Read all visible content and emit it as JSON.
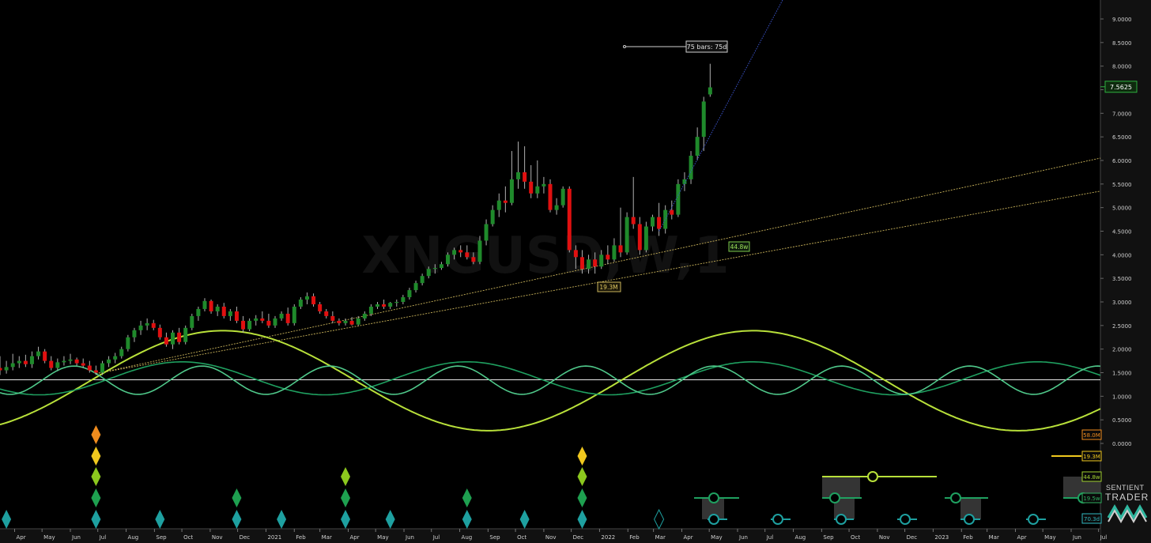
{
  "chart_data": {
    "type": "candlestick",
    "watermark": "XNGUSD,W,1",
    "y_axis": {
      "ticks": [
        "9.0000",
        "8.5000",
        "8.0000",
        "7.5000",
        "7.0000",
        "6.5000",
        "6.0000",
        "5.5000",
        "5.0000",
        "4.5000",
        "4.0000",
        "3.5000",
        "3.0000",
        "2.5000",
        "2.0000",
        "1.5000",
        "1.0000",
        "0.5000",
        "0.0000"
      ],
      "range": [
        0,
        9
      ]
    },
    "x_axis": {
      "ticks": [
        "Apr",
        "May",
        "Jun",
        "Jul",
        "Aug",
        "Sep",
        "Oct",
        "Nov",
        "Dec",
        "2021",
        "Feb",
        "Mar",
        "Apr",
        "May",
        "Jun",
        "Jul",
        "Aug",
        "Sep",
        "Oct",
        "Nov",
        "Dec",
        "2022",
        "Feb",
        "Mar",
        "Apr",
        "May",
        "Jun",
        "Jul",
        "Aug",
        "Sep",
        "Oct",
        "Nov",
        "Dec",
        "2023",
        "Feb",
        "Mar",
        "Apr",
        "May",
        "Jun",
        "Jul"
      ],
      "range": [
        "2020-03-16",
        "2023-07-03"
      ]
    },
    "last_price": "7.5625",
    "annotations": {
      "bars_label": "75 bars: 75d",
      "trend_label_upper": "44.8w",
      "trend_label_lower": "19.3M"
    },
    "cycle_labels": [
      "58.0M",
      "19.3M",
      "44.8w",
      "19.5w",
      "70.3d"
    ],
    "colors": {
      "up": "#1f8a2b",
      "down": "#e01010",
      "wave_long": "#b8e03a",
      "wave_mid": "#1fa060",
      "wave_short": "#4fc88a",
      "trend": "#c9b35a",
      "projection": "#3a52c8",
      "diamond_orange": "#f08c1e",
      "diamond_yellow": "#f0c81e",
      "diamond_lime": "#8cc81e",
      "diamond_green": "#1ea050",
      "diamond_teal": "#1ea0a0",
      "label_58": "#f08c1e",
      "label_19": "#f0c81e",
      "label_44": "#a0d030",
      "label_19_5": "#30b060",
      "label_70": "#30b8c0"
    },
    "candles": [
      {
        "d": "2020-03-16",
        "o": 1.6,
        "h": 1.85,
        "l": 1.45,
        "c": 1.55
      },
      {
        "d": "2020-03-23",
        "o": 1.55,
        "h": 1.75,
        "l": 1.48,
        "c": 1.62
      },
      {
        "d": "2020-03-30",
        "o": 1.62,
        "h": 1.9,
        "l": 1.55,
        "c": 1.7
      },
      {
        "d": "2020-04-06",
        "o": 1.7,
        "h": 1.85,
        "l": 1.6,
        "c": 1.75
      },
      {
        "d": "2020-04-13",
        "o": 1.75,
        "h": 1.88,
        "l": 1.62,
        "c": 1.68
      },
      {
        "d": "2020-04-20",
        "o": 1.68,
        "h": 1.95,
        "l": 1.6,
        "c": 1.85
      },
      {
        "d": "2020-04-27",
        "o": 1.85,
        "h": 2.05,
        "l": 1.78,
        "c": 1.95
      },
      {
        "d": "2020-05-04",
        "o": 1.95,
        "h": 2.0,
        "l": 1.7,
        "c": 1.75
      },
      {
        "d": "2020-05-11",
        "o": 1.75,
        "h": 1.85,
        "l": 1.55,
        "c": 1.6
      },
      {
        "d": "2020-05-18",
        "o": 1.6,
        "h": 1.8,
        "l": 1.55,
        "c": 1.72
      },
      {
        "d": "2020-05-25",
        "o": 1.72,
        "h": 1.85,
        "l": 1.65,
        "c": 1.75
      },
      {
        "d": "2020-06-01",
        "o": 1.75,
        "h": 1.9,
        "l": 1.68,
        "c": 1.78
      },
      {
        "d": "2020-06-08",
        "o": 1.78,
        "h": 1.82,
        "l": 1.65,
        "c": 1.7
      },
      {
        "d": "2020-06-15",
        "o": 1.7,
        "h": 1.8,
        "l": 1.6,
        "c": 1.65
      },
      {
        "d": "2020-06-22",
        "o": 1.65,
        "h": 1.75,
        "l": 1.5,
        "c": 1.55
      },
      {
        "d": "2020-06-29",
        "o": 1.55,
        "h": 1.65,
        "l": 1.45,
        "c": 1.5
      },
      {
        "d": "2020-07-06",
        "o": 1.5,
        "h": 1.75,
        "l": 1.45,
        "c": 1.7
      },
      {
        "d": "2020-07-13",
        "o": 1.7,
        "h": 1.85,
        "l": 1.62,
        "c": 1.78
      },
      {
        "d": "2020-07-20",
        "o": 1.78,
        "h": 1.92,
        "l": 1.7,
        "c": 1.85
      },
      {
        "d": "2020-07-27",
        "o": 1.85,
        "h": 2.05,
        "l": 1.8,
        "c": 2.0
      },
      {
        "d": "2020-08-03",
        "o": 2.0,
        "h": 2.3,
        "l": 1.95,
        "c": 2.25
      },
      {
        "d": "2020-08-10",
        "o": 2.25,
        "h": 2.45,
        "l": 2.15,
        "c": 2.4
      },
      {
        "d": "2020-08-17",
        "o": 2.4,
        "h": 2.6,
        "l": 2.3,
        "c": 2.5
      },
      {
        "d": "2020-08-24",
        "o": 2.5,
        "h": 2.65,
        "l": 2.4,
        "c": 2.55
      },
      {
        "d": "2020-08-31",
        "o": 2.55,
        "h": 2.62,
        "l": 2.4,
        "c": 2.45
      },
      {
        "d": "2020-09-07",
        "o": 2.45,
        "h": 2.52,
        "l": 2.2,
        "c": 2.25
      },
      {
        "d": "2020-09-14",
        "o": 2.25,
        "h": 2.35,
        "l": 2.05,
        "c": 2.1
      },
      {
        "d": "2020-09-21",
        "o": 2.1,
        "h": 2.4,
        "l": 2.0,
        "c": 2.35
      },
      {
        "d": "2020-09-28",
        "o": 2.35,
        "h": 2.45,
        "l": 2.1,
        "c": 2.15
      },
      {
        "d": "2020-10-05",
        "o": 2.15,
        "h": 2.5,
        "l": 2.1,
        "c": 2.45
      },
      {
        "d": "2020-10-12",
        "o": 2.45,
        "h": 2.75,
        "l": 2.4,
        "c": 2.7
      },
      {
        "d": "2020-10-19",
        "o": 2.7,
        "h": 2.9,
        "l": 2.6,
        "c": 2.85
      },
      {
        "d": "2020-10-26",
        "o": 2.85,
        "h": 3.08,
        "l": 2.8,
        "c": 3.02
      },
      {
        "d": "2020-11-02",
        "o": 3.02,
        "h": 3.05,
        "l": 2.75,
        "c": 2.8
      },
      {
        "d": "2020-11-09",
        "o": 2.8,
        "h": 2.95,
        "l": 2.7,
        "c": 2.9
      },
      {
        "d": "2020-11-16",
        "o": 2.9,
        "h": 2.98,
        "l": 2.65,
        "c": 2.7
      },
      {
        "d": "2020-11-23",
        "o": 2.7,
        "h": 2.85,
        "l": 2.6,
        "c": 2.8
      },
      {
        "d": "2020-11-30",
        "o": 2.8,
        "h": 2.9,
        "l": 2.55,
        "c": 2.6
      },
      {
        "d": "2020-12-07",
        "o": 2.6,
        "h": 2.7,
        "l": 2.35,
        "c": 2.42
      },
      {
        "d": "2020-12-14",
        "o": 2.42,
        "h": 2.65,
        "l": 2.38,
        "c": 2.6
      },
      {
        "d": "2020-12-21",
        "o": 2.6,
        "h": 2.72,
        "l": 2.5,
        "c": 2.65
      },
      {
        "d": "2020-12-28",
        "o": 2.65,
        "h": 2.8,
        "l": 2.55,
        "c": 2.6
      },
      {
        "d": "2021-01-04",
        "o": 2.6,
        "h": 2.75,
        "l": 2.45,
        "c": 2.5
      },
      {
        "d": "2021-01-11",
        "o": 2.5,
        "h": 2.7,
        "l": 2.45,
        "c": 2.65
      },
      {
        "d": "2021-01-18",
        "o": 2.65,
        "h": 2.8,
        "l": 2.6,
        "c": 2.75
      },
      {
        "d": "2021-01-25",
        "o": 2.75,
        "h": 2.88,
        "l": 2.5,
        "c": 2.55
      },
      {
        "d": "2021-02-01",
        "o": 2.55,
        "h": 2.95,
        "l": 2.5,
        "c": 2.9
      },
      {
        "d": "2021-02-08",
        "o": 2.9,
        "h": 3.1,
        "l": 2.85,
        "c": 3.05
      },
      {
        "d": "2021-02-15",
        "o": 3.05,
        "h": 3.2,
        "l": 2.95,
        "c": 3.12
      },
      {
        "d": "2021-02-22",
        "o": 3.12,
        "h": 3.18,
        "l": 2.9,
        "c": 2.95
      },
      {
        "d": "2021-03-01",
        "o": 2.95,
        "h": 3.0,
        "l": 2.75,
        "c": 2.8
      },
      {
        "d": "2021-03-08",
        "o": 2.8,
        "h": 2.85,
        "l": 2.65,
        "c": 2.7
      },
      {
        "d": "2021-03-15",
        "o": 2.7,
        "h": 2.8,
        "l": 2.55,
        "c": 2.6
      },
      {
        "d": "2021-03-22",
        "o": 2.6,
        "h": 2.65,
        "l": 2.5,
        "c": 2.55
      },
      {
        "d": "2021-03-29",
        "o": 2.55,
        "h": 2.65,
        "l": 2.5,
        "c": 2.6
      },
      {
        "d": "2021-04-05",
        "o": 2.6,
        "h": 2.68,
        "l": 2.5,
        "c": 2.52
      },
      {
        "d": "2021-04-12",
        "o": 2.52,
        "h": 2.7,
        "l": 2.5,
        "c": 2.65
      },
      {
        "d": "2021-04-19",
        "o": 2.65,
        "h": 2.8,
        "l": 2.6,
        "c": 2.75
      },
      {
        "d": "2021-04-26",
        "o": 2.75,
        "h": 2.95,
        "l": 2.7,
        "c": 2.9
      },
      {
        "d": "2021-05-03",
        "o": 2.9,
        "h": 3.0,
        "l": 2.85,
        "c": 2.95
      },
      {
        "d": "2021-05-10",
        "o": 2.95,
        "h": 3.05,
        "l": 2.85,
        "c": 2.9
      },
      {
        "d": "2021-05-17",
        "o": 2.9,
        "h": 3.0,
        "l": 2.85,
        "c": 2.98
      },
      {
        "d": "2021-05-24",
        "o": 2.98,
        "h": 3.05,
        "l": 2.9,
        "c": 3.0
      },
      {
        "d": "2021-05-31",
        "o": 3.0,
        "h": 3.15,
        "l": 2.95,
        "c": 3.1
      },
      {
        "d": "2021-06-07",
        "o": 3.1,
        "h": 3.3,
        "l": 3.05,
        "c": 3.25
      },
      {
        "d": "2021-06-14",
        "o": 3.25,
        "h": 3.45,
        "l": 3.2,
        "c": 3.4
      },
      {
        "d": "2021-06-21",
        "o": 3.4,
        "h": 3.6,
        "l": 3.35,
        "c": 3.55
      },
      {
        "d": "2021-06-28",
        "o": 3.55,
        "h": 3.75,
        "l": 3.5,
        "c": 3.7
      },
      {
        "d": "2021-07-05",
        "o": 3.7,
        "h": 3.8,
        "l": 3.6,
        "c": 3.72
      },
      {
        "d": "2021-07-12",
        "o": 3.72,
        "h": 3.85,
        "l": 3.68,
        "c": 3.8
      },
      {
        "d": "2021-07-19",
        "o": 3.8,
        "h": 4.05,
        "l": 3.75,
        "c": 4.0
      },
      {
        "d": "2021-07-26",
        "o": 4.0,
        "h": 4.15,
        "l": 3.9,
        "c": 4.1
      },
      {
        "d": "2021-08-02",
        "o": 4.1,
        "h": 4.2,
        "l": 3.95,
        "c": 4.05
      },
      {
        "d": "2021-08-09",
        "o": 4.05,
        "h": 4.2,
        "l": 3.9,
        "c": 3.95
      },
      {
        "d": "2021-08-16",
        "o": 3.95,
        "h": 4.05,
        "l": 3.8,
        "c": 3.85
      },
      {
        "d": "2021-08-23",
        "o": 3.85,
        "h": 4.4,
        "l": 3.8,
        "c": 4.3
      },
      {
        "d": "2021-08-30",
        "o": 4.3,
        "h": 4.75,
        "l": 4.2,
        "c": 4.65
      },
      {
        "d": "2021-09-06",
        "o": 4.65,
        "h": 5.05,
        "l": 4.6,
        "c": 4.95
      },
      {
        "d": "2021-09-13",
        "o": 4.95,
        "h": 5.3,
        "l": 4.8,
        "c": 5.15
      },
      {
        "d": "2021-09-20",
        "o": 5.15,
        "h": 5.45,
        "l": 4.9,
        "c": 5.1
      },
      {
        "d": "2021-09-27",
        "o": 5.1,
        "h": 6.2,
        "l": 5.05,
        "c": 5.6
      },
      {
        "d": "2021-10-04",
        "o": 5.6,
        "h": 6.4,
        "l": 5.4,
        "c": 5.75
      },
      {
        "d": "2021-10-11",
        "o": 5.75,
        "h": 6.3,
        "l": 5.4,
        "c": 5.55
      },
      {
        "d": "2021-10-18",
        "o": 5.55,
        "h": 5.9,
        "l": 5.2,
        "c": 5.3
      },
      {
        "d": "2021-10-25",
        "o": 5.3,
        "h": 6.0,
        "l": 5.2,
        "c": 5.45
      },
      {
        "d": "2021-11-01",
        "o": 5.45,
        "h": 5.65,
        "l": 5.3,
        "c": 5.5
      },
      {
        "d": "2021-11-08",
        "o": 5.5,
        "h": 5.6,
        "l": 4.9,
        "c": 4.95
      },
      {
        "d": "2021-11-15",
        "o": 4.95,
        "h": 5.2,
        "l": 4.85,
        "c": 5.05
      },
      {
        "d": "2021-11-22",
        "o": 5.05,
        "h": 5.45,
        "l": 5.0,
        "c": 5.4
      },
      {
        "d": "2021-11-29",
        "o": 5.4,
        "h": 5.45,
        "l": 4.05,
        "c": 4.1
      },
      {
        "d": "2021-12-06",
        "o": 4.1,
        "h": 4.2,
        "l": 3.7,
        "c": 3.95
      },
      {
        "d": "2021-12-13",
        "o": 3.95,
        "h": 4.1,
        "l": 3.6,
        "c": 3.7
      },
      {
        "d": "2021-12-20",
        "o": 3.7,
        "h": 4.0,
        "l": 3.6,
        "c": 3.9
      },
      {
        "d": "2021-12-27",
        "o": 3.9,
        "h": 4.05,
        "l": 3.6,
        "c": 3.75
      },
      {
        "d": "2022-01-03",
        "o": 3.75,
        "h": 4.1,
        "l": 3.7,
        "c": 4.0
      },
      {
        "d": "2022-01-10",
        "o": 4.0,
        "h": 4.2,
        "l": 3.8,
        "c": 3.9
      },
      {
        "d": "2022-01-17",
        "o": 3.9,
        "h": 4.35,
        "l": 3.85,
        "c": 4.2
      },
      {
        "d": "2022-01-24",
        "o": 4.2,
        "h": 5.0,
        "l": 3.95,
        "c": 4.05
      },
      {
        "d": "2022-01-31",
        "o": 4.05,
        "h": 4.9,
        "l": 4.0,
        "c": 4.8
      },
      {
        "d": "2022-02-07",
        "o": 4.8,
        "h": 5.65,
        "l": 4.55,
        "c": 4.65
      },
      {
        "d": "2022-02-14",
        "o": 4.65,
        "h": 4.8,
        "l": 4.0,
        "c": 4.1
      },
      {
        "d": "2022-02-21",
        "o": 4.1,
        "h": 4.7,
        "l": 4.05,
        "c": 4.6
      },
      {
        "d": "2022-02-28",
        "o": 4.6,
        "h": 4.85,
        "l": 4.5,
        "c": 4.8
      },
      {
        "d": "2022-03-07",
        "o": 4.8,
        "h": 5.1,
        "l": 4.4,
        "c": 4.55
      },
      {
        "d": "2022-03-14",
        "o": 4.55,
        "h": 5.05,
        "l": 4.45,
        "c": 4.95
      },
      {
        "d": "2022-03-21",
        "o": 4.95,
        "h": 5.15,
        "l": 4.75,
        "c": 4.85
      },
      {
        "d": "2022-03-28",
        "o": 4.85,
        "h": 5.6,
        "l": 4.8,
        "c": 5.5
      },
      {
        "d": "2022-04-04",
        "o": 5.5,
        "h": 5.75,
        "l": 5.35,
        "c": 5.6
      },
      {
        "d": "2022-04-11",
        "o": 5.6,
        "h": 6.2,
        "l": 5.5,
        "c": 6.1
      },
      {
        "d": "2022-04-18",
        "o": 6.1,
        "h": 6.7,
        "l": 6.0,
        "c": 6.5
      },
      {
        "d": "2022-04-25",
        "o": 6.5,
        "h": 7.35,
        "l": 6.2,
        "c": 7.25
      },
      {
        "d": "2022-05-02",
        "o": 7.4,
        "h": 8.05,
        "l": 7.35,
        "c": 7.55
      }
    ],
    "diamonds": [
      {
        "d": "2020-03-23",
        "stack": [
          "teal"
        ]
      },
      {
        "d": "2020-06-29",
        "stack": [
          "teal",
          "green",
          "lime",
          "yellow",
          "orange"
        ]
      },
      {
        "d": "2020-09-07",
        "stack": [
          "teal"
        ]
      },
      {
        "d": "2020-11-30",
        "stack": [
          "teal",
          "green"
        ]
      },
      {
        "d": "2021-01-18",
        "stack": [
          "teal"
        ]
      },
      {
        "d": "2021-03-29",
        "stack": [
          "teal",
          "green",
          "lime"
        ]
      },
      {
        "d": "2021-05-17",
        "stack": [
          "teal"
        ]
      },
      {
        "d": "2021-08-09",
        "stack": [
          "teal",
          "green"
        ]
      },
      {
        "d": "2021-10-11",
        "stack": [
          "teal"
        ]
      },
      {
        "d": "2021-12-13",
        "stack": [
          "teal",
          "green",
          "lime",
          "yellow"
        ]
      },
      {
        "d": "2022-03-07",
        "stack": [
          "outline"
        ]
      }
    ]
  }
}
